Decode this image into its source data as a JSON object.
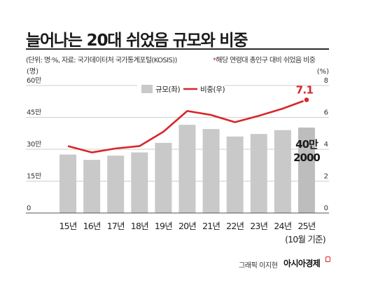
{
  "header": {
    "title": "늘어나는 20대 쉬었음 규모와 비중",
    "source": "(단위: 명·%, 자료: 국가데이터처 국가통계포털(KOSIS))",
    "note_star": "*",
    "note": "해당 연령대 총인구 대비 쉬었음 비중"
  },
  "footer": {
    "credit": "그래픽 이지현",
    "brand": "아시아경제"
  },
  "colors": {
    "bar": "#c9c9c9",
    "line": "#d8262b",
    "highlight_bar": "#bdbdbd",
    "grid": "#cfcfcf"
  },
  "chart_data": {
    "type": "bar",
    "categories": [
      "15년",
      "16년",
      "17년",
      "18년",
      "19년",
      "20년",
      "21년",
      "22년",
      "23년",
      "24년",
      "25년"
    ],
    "category_note": "(10월 기준)",
    "series": [
      {
        "name": "규모(좌)",
        "type": "bar",
        "axis": "left",
        "values": [
          275000,
          250000,
          270000,
          285000,
          330000,
          415000,
          395000,
          360000,
          372000,
          390000,
          402000
        ]
      },
      {
        "name": "비중(우)",
        "type": "line",
        "axis": "right",
        "values": [
          4.2,
          3.8,
          4.05,
          4.2,
          5.1,
          6.4,
          6.15,
          5.7,
          6.1,
          6.55,
          7.1
        ]
      }
    ],
    "left_axis": {
      "unit_label": "(명)",
      "ticks": [
        "0",
        "15만",
        "30만",
        "45만",
        "60만"
      ],
      "ylim": [
        0,
        600000
      ]
    },
    "right_axis": {
      "unit_label": "(%)",
      "ticks": [
        "0",
        "2",
        "4",
        "6",
        "8"
      ],
      "ylim": [
        0,
        8
      ]
    },
    "annotations": {
      "last_line_value": "7.1",
      "last_bar_value_line1": "40만",
      "last_bar_value_line2": "2000"
    },
    "grid": true,
    "legend_position": "top-center"
  }
}
